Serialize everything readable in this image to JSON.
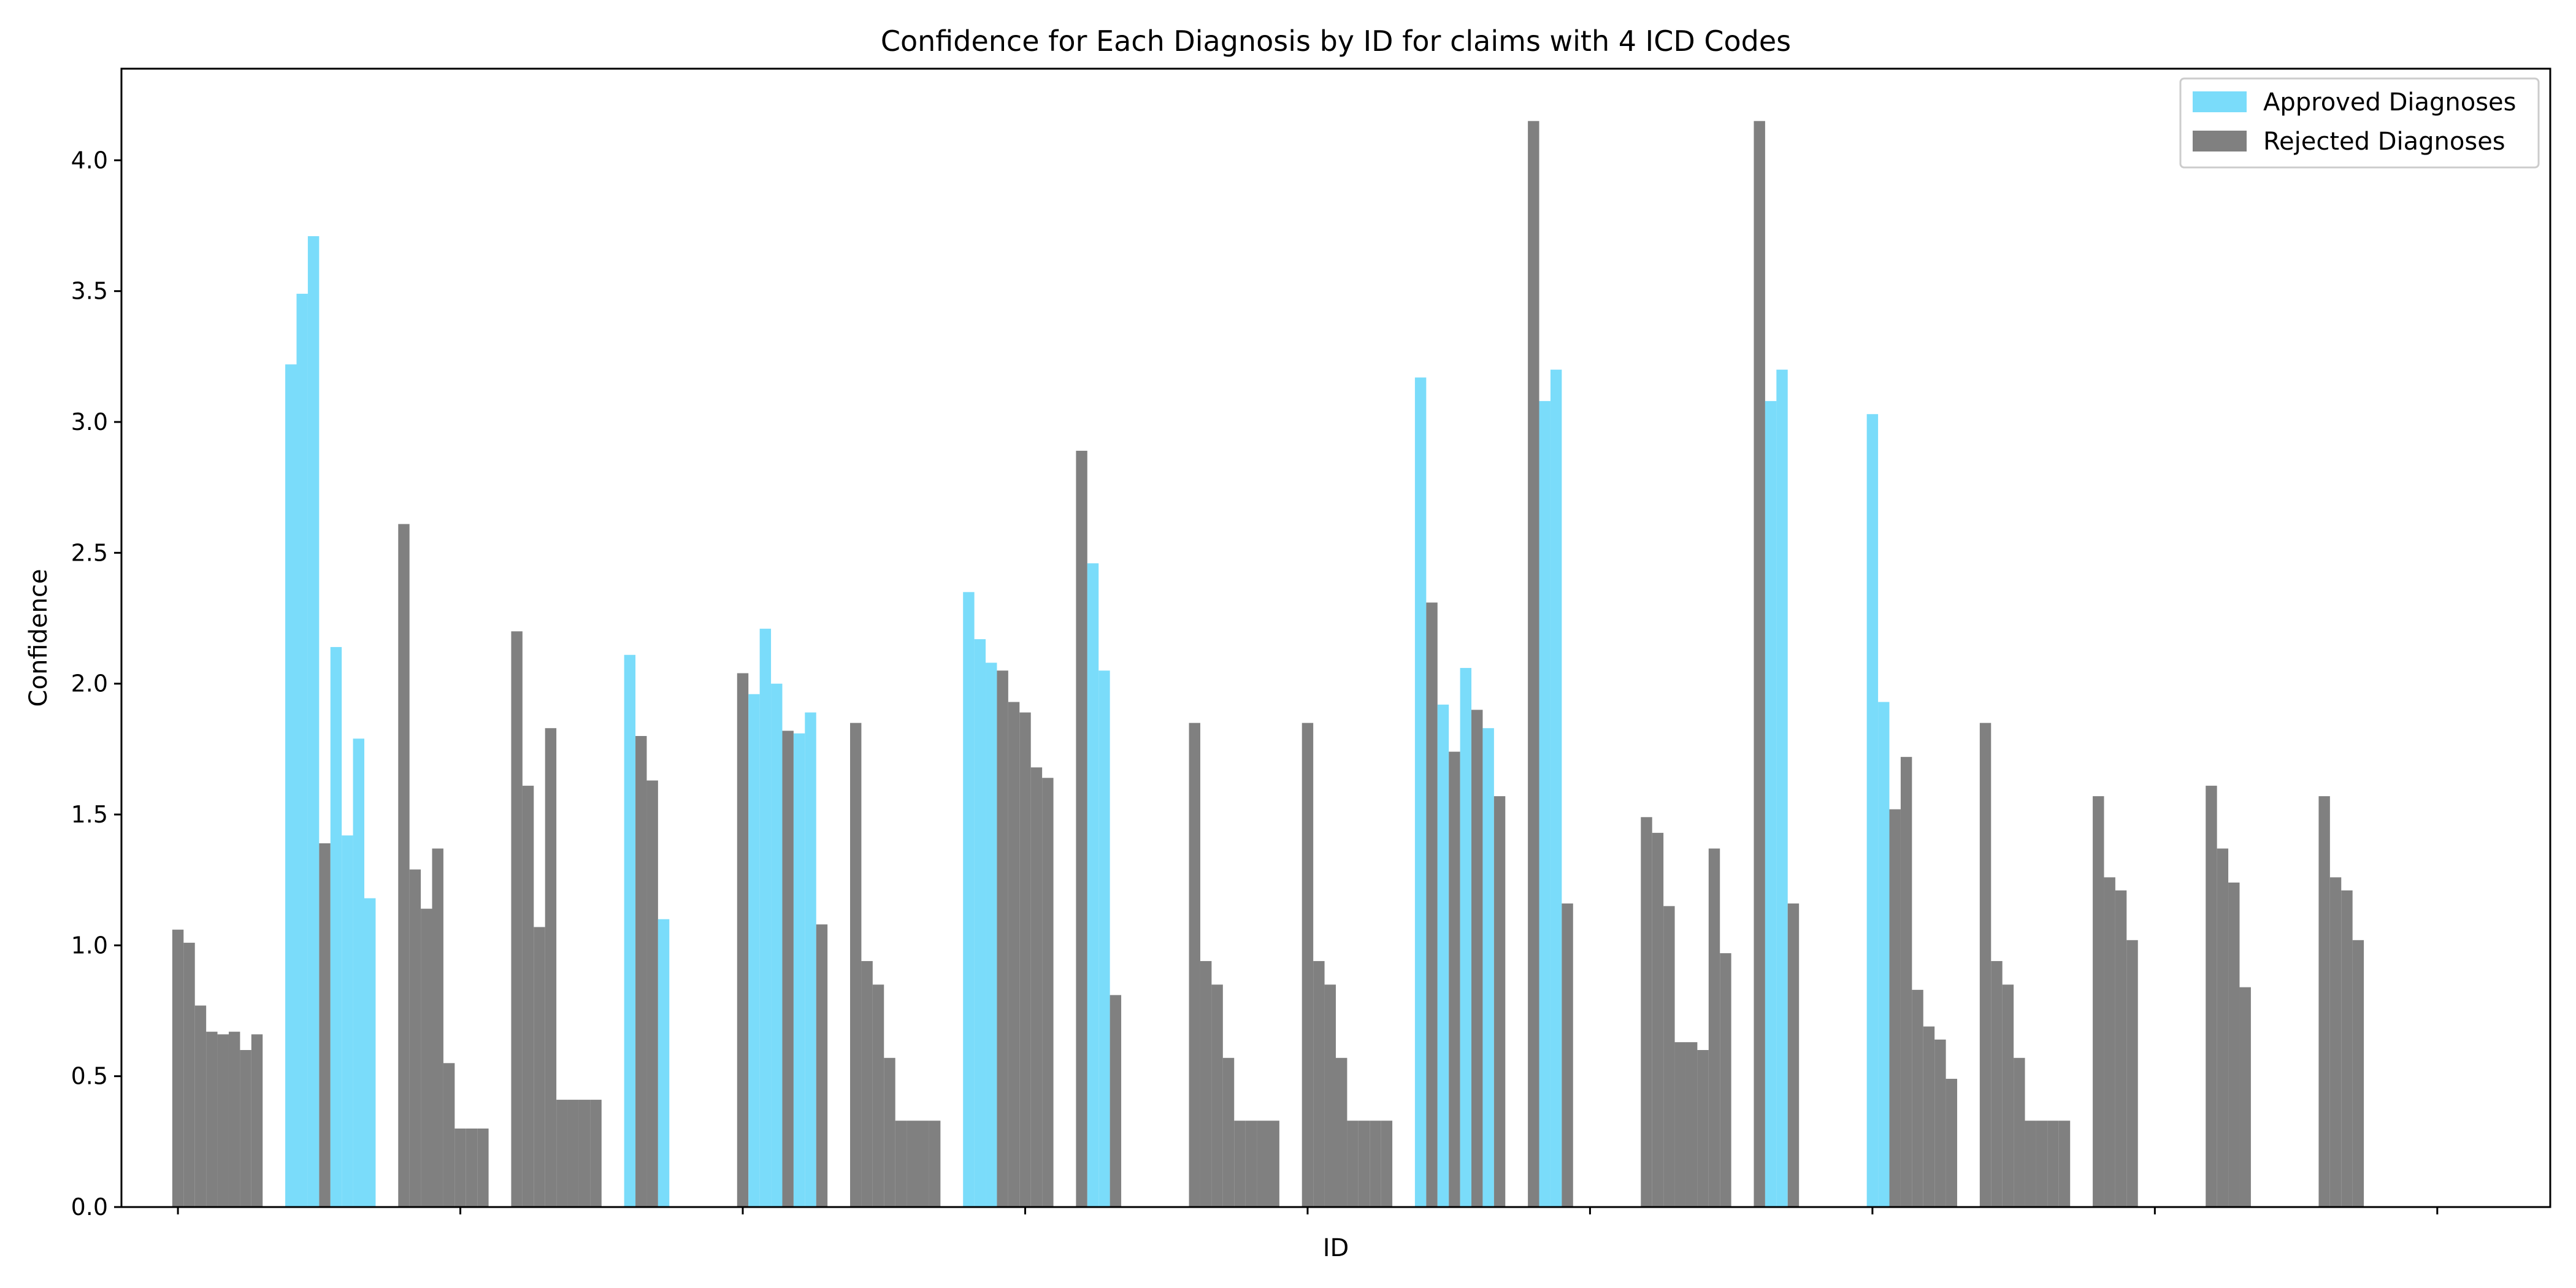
{
  "chart_data": {
    "type": "bar",
    "title": "Confidence for Each Diagnosis by ID for claims with 4 ICD Codes",
    "xlabel": "ID",
    "ylabel": "Confidence",
    "ylim": [
      0,
      4.35
    ],
    "yticks": [
      0.0,
      0.5,
      1.0,
      1.5,
      2.0,
      2.5,
      3.0,
      3.5,
      4.0
    ],
    "ytick_labels": [
      "0.0",
      "0.5",
      "1.0",
      "1.5",
      "2.0",
      "2.5",
      "3.0",
      "3.5",
      "4.0"
    ],
    "xtick_labels_shown": false,
    "grid": false,
    "legend": {
      "placement": "top-right"
    },
    "colors": {
      "approved": "#7adcfa",
      "rejected": "#808080"
    },
    "groups": [
      {
        "values": [
          1.06,
          1.01,
          0.77,
          0.67,
          0.66,
          0.67,
          0.6,
          0.66
        ],
        "approved": [
          false,
          false,
          false,
          false,
          false,
          false,
          false,
          false
        ]
      },
      {
        "values": [
          3.22,
          3.49,
          3.71,
          1.39,
          2.14,
          1.42,
          1.79,
          1.18
        ],
        "approved": [
          true,
          true,
          true,
          false,
          true,
          true,
          true,
          true
        ]
      },
      {
        "values": [
          2.61,
          1.29,
          1.14,
          1.37,
          0.55,
          0.3,
          0.3,
          0.3
        ],
        "approved": [
          false,
          false,
          false,
          false,
          false,
          false,
          false,
          false
        ]
      },
      {
        "values": [
          2.2,
          1.61,
          1.07,
          1.83,
          0.41,
          0.41,
          0.41,
          0.41
        ],
        "approved": [
          false,
          false,
          false,
          false,
          false,
          false,
          false,
          false
        ]
      },
      {
        "values": [
          2.11,
          1.8,
          1.63,
          1.1
        ],
        "approved": [
          true,
          false,
          false,
          true
        ]
      },
      {
        "values": [
          2.04,
          1.96,
          2.21,
          2.0,
          1.82,
          1.81,
          1.89,
          1.08
        ],
        "approved": [
          false,
          true,
          true,
          true,
          false,
          true,
          true,
          false
        ]
      },
      {
        "values": [
          1.85,
          0.94,
          0.85,
          0.57,
          0.33,
          0.33,
          0.33,
          0.33
        ],
        "approved": [
          false,
          false,
          false,
          false,
          false,
          false,
          false,
          false
        ]
      },
      {
        "values": [
          2.35,
          2.17,
          2.08,
          2.05,
          1.93,
          1.89,
          1.68,
          1.64
        ],
        "approved": [
          true,
          true,
          true,
          false,
          false,
          false,
          false,
          false
        ]
      },
      {
        "values": [
          2.89,
          2.46,
          2.05,
          0.81
        ],
        "approved": [
          false,
          true,
          true,
          false
        ]
      },
      {
        "values": [
          1.85,
          0.94,
          0.85,
          0.57,
          0.33,
          0.33,
          0.33,
          0.33
        ],
        "approved": [
          false,
          false,
          false,
          false,
          false,
          false,
          false,
          false
        ]
      },
      {
        "values": [
          1.85,
          0.94,
          0.85,
          0.57,
          0.33,
          0.33,
          0.33,
          0.33
        ],
        "approved": [
          false,
          false,
          false,
          false,
          false,
          false,
          false,
          false
        ]
      },
      {
        "values": [
          3.17,
          2.31,
          1.92,
          1.74,
          2.06,
          1.9,
          1.83,
          1.57
        ],
        "approved": [
          true,
          false,
          true,
          false,
          true,
          false,
          true,
          false
        ]
      },
      {
        "values": [
          4.15,
          3.08,
          3.2,
          1.16
        ],
        "approved": [
          false,
          true,
          true,
          false
        ]
      },
      {
        "values": [
          1.49,
          1.43,
          1.15,
          0.63,
          0.63,
          0.6,
          1.37,
          0.97
        ],
        "approved": [
          false,
          false,
          false,
          false,
          false,
          false,
          false,
          false
        ]
      },
      {
        "values": [
          4.15,
          3.08,
          3.2,
          1.16
        ],
        "approved": [
          false,
          true,
          true,
          false
        ]
      },
      {
        "values": [
          3.03,
          1.93,
          1.52,
          1.72,
          0.83,
          0.69,
          0.64,
          0.49
        ],
        "approved": [
          true,
          true,
          false,
          false,
          false,
          false,
          false,
          false
        ]
      },
      {
        "values": [
          1.85,
          0.94,
          0.85,
          0.57,
          0.33,
          0.33,
          0.33,
          0.33
        ],
        "approved": [
          false,
          false,
          false,
          false,
          false,
          false,
          false,
          false
        ]
      },
      {
        "values": [
          1.57,
          1.26,
          1.21,
          1.02
        ],
        "approved": [
          false,
          false,
          false,
          false
        ]
      },
      {
        "values": [
          1.61,
          1.37,
          1.24,
          0.84
        ],
        "approved": [
          false,
          false,
          false,
          false
        ]
      },
      {
        "values": [
          1.57,
          1.26,
          1.21,
          1.02
        ],
        "approved": [
          false,
          false,
          false,
          false
        ]
      }
    ],
    "legend_entries": [
      {
        "label": "Approved Diagnoses",
        "color": "#7adcfa"
      },
      {
        "label": "Rejected Diagnoses",
        "color": "#808080"
      }
    ]
  }
}
